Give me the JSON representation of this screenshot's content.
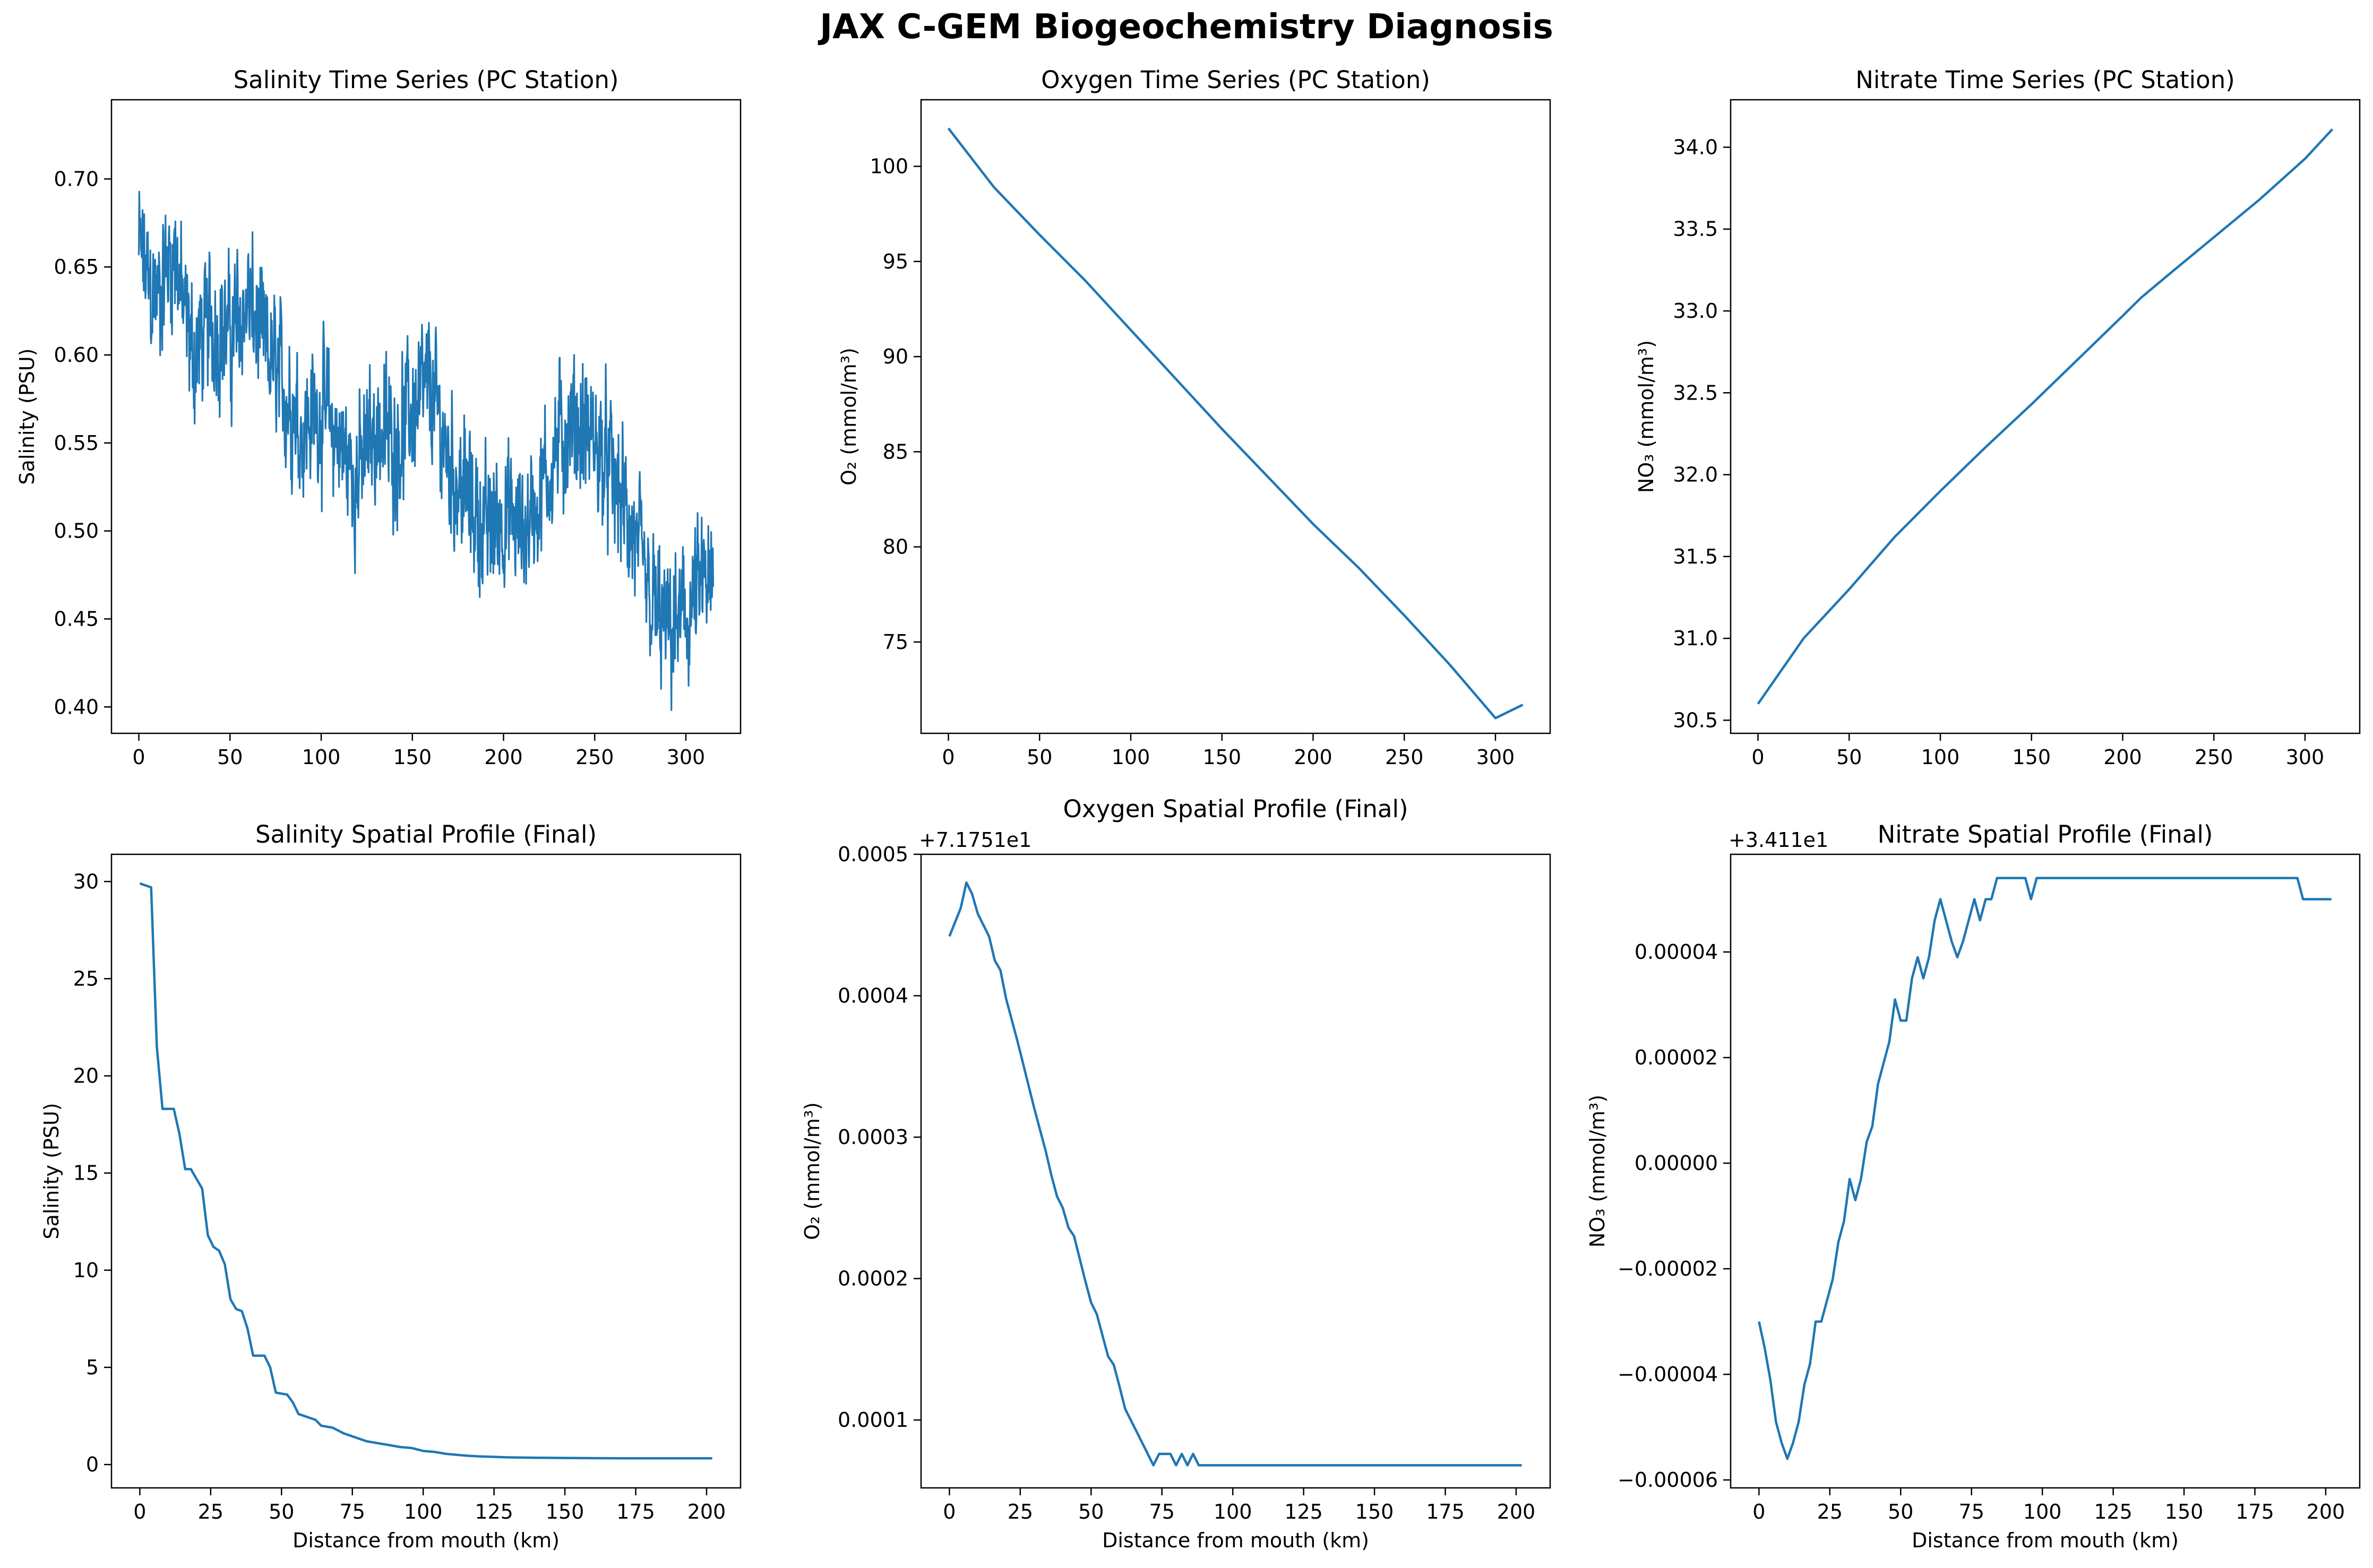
{
  "figure": {
    "suptitle": "JAX C-GEM Biogeochemistry Diagnosis"
  },
  "colors": {
    "series": "#1f77b4",
    "axes": "#000000",
    "background": "#ffffff"
  },
  "chart_data": [
    {
      "type": "line",
      "title": "Salinity Time Series (PC Station)",
      "xlabel": "",
      "ylabel": "Salinity (PSU)",
      "xlim": [
        -15,
        330
      ],
      "ylim": [
        0.385,
        0.745
      ],
      "xticks": [
        0,
        50,
        100,
        150,
        200,
        250,
        300
      ],
      "yticks": [
        0.4,
        0.45,
        0.5,
        0.55,
        0.6,
        0.65,
        0.7
      ],
      "ytick_labels": [
        "0.40",
        "0.45",
        "0.50",
        "0.55",
        "0.60",
        "0.65",
        "0.70"
      ],
      "offset_text": "",
      "noisy": true,
      "noise_amp": 0.045,
      "series": [
        {
          "x": [
            0,
            5,
            10,
            15,
            20,
            25,
            30,
            40,
            50,
            60,
            70,
            80,
            90,
            100,
            110,
            120,
            130,
            140,
            150,
            160,
            170,
            180,
            190,
            200,
            210,
            220,
            230,
            240,
            250,
            260,
            270,
            280,
            290,
            300,
            310,
            315
          ],
          "y": [
            0.66,
            0.64,
            0.63,
            0.65,
            0.66,
            0.62,
            0.6,
            0.62,
            0.61,
            0.63,
            0.6,
            0.58,
            0.56,
            0.57,
            0.55,
            0.53,
            0.56,
            0.55,
            0.57,
            0.58,
            0.54,
            0.52,
            0.5,
            0.51,
            0.5,
            0.52,
            0.55,
            0.56,
            0.55,
            0.53,
            0.5,
            0.46,
            0.44,
            0.45,
            0.47,
            0.46
          ]
        }
      ]
    },
    {
      "type": "line",
      "title": "Oxygen Time Series (PC Station)",
      "xlabel": "",
      "ylabel": "O₂ (mmol/m³)",
      "xlim": [
        -15,
        330
      ],
      "ylim": [
        70.2,
        103.5
      ],
      "xticks": [
        0,
        50,
        100,
        150,
        200,
        250,
        300
      ],
      "yticks": [
        75,
        80,
        85,
        90,
        95,
        100
      ],
      "ytick_labels": [
        "75",
        "80",
        "85",
        "90",
        "95",
        "100"
      ],
      "offset_text": "",
      "noisy": false,
      "series": [
        {
          "x": [
            0,
            25,
            50,
            75,
            100,
            125,
            150,
            175,
            200,
            225,
            250,
            275,
            300,
            315
          ],
          "y": [
            102,
            98.9,
            96.4,
            94.0,
            91.4,
            88.8,
            86.2,
            83.7,
            81.2,
            78.9,
            76.4,
            73.8,
            71.0,
            71.7
          ]
        }
      ]
    },
    {
      "type": "line",
      "title": "Nitrate Time Series (PC Station)",
      "xlabel": "",
      "ylabel": "NO₃ (mmol/m³)",
      "xlim": [
        -15,
        330
      ],
      "ylim": [
        30.42,
        34.29
      ],
      "xticks": [
        0,
        50,
        100,
        150,
        200,
        250,
        300
      ],
      "yticks": [
        30.5,
        31.0,
        31.5,
        32.0,
        32.5,
        33.0,
        33.5,
        34.0
      ],
      "ytick_labels": [
        "30.5",
        "31.0",
        "31.5",
        "32.0",
        "32.5",
        "33.0",
        "33.5",
        "34.0"
      ],
      "offset_text": "",
      "noisy": false,
      "series": [
        {
          "x": [
            0,
            25,
            50,
            75,
            100,
            125,
            150,
            175,
            200,
            210,
            225,
            250,
            275,
            300,
            315
          ],
          "y": [
            30.6,
            31.0,
            31.3,
            31.62,
            31.9,
            32.17,
            32.43,
            32.7,
            32.97,
            33.08,
            33.22,
            33.45,
            33.68,
            33.93,
            34.11
          ]
        }
      ]
    },
    {
      "type": "line",
      "title": "Salinity Spatial Profile (Final)",
      "xlabel": "Distance from mouth (km)",
      "ylabel": "Salinity (PSU)",
      "xlim": [
        -10,
        212
      ],
      "ylim": [
        -1.2,
        31.4
      ],
      "xticks": [
        0,
        25,
        50,
        75,
        100,
        125,
        150,
        175,
        200
      ],
      "yticks": [
        0,
        5,
        10,
        15,
        20,
        25,
        30
      ],
      "ytick_labels": [
        "0",
        "5",
        "10",
        "15",
        "20",
        "25",
        "30"
      ],
      "offset_text": "",
      "noisy": false,
      "series": [
        {
          "x": [
            0,
            4,
            6,
            8,
            12,
            14,
            16,
            18,
            22,
            24,
            26,
            28,
            30,
            32,
            34,
            36,
            38,
            40,
            44,
            46,
            48,
            52,
            54,
            56,
            60,
            62,
            64,
            68,
            72,
            76,
            80,
            84,
            88,
            92,
            96,
            100,
            104,
            108,
            112,
            116,
            120,
            124,
            130,
            140,
            150,
            160,
            170,
            180,
            190,
            202
          ],
          "y": [
            29.9,
            29.7,
            21.5,
            18.3,
            18.3,
            17.0,
            15.2,
            15.2,
            14.2,
            11.8,
            11.2,
            11.0,
            10.3,
            8.5,
            8.0,
            7.9,
            7.0,
            5.6,
            5.6,
            5.0,
            3.7,
            3.6,
            3.2,
            2.6,
            2.4,
            2.3,
            2.0,
            1.9,
            1.6,
            1.4,
            1.2,
            1.1,
            1.0,
            0.9,
            0.85,
            0.7,
            0.65,
            0.55,
            0.5,
            0.45,
            0.42,
            0.4,
            0.37,
            0.35,
            0.34,
            0.33,
            0.32,
            0.32,
            0.32,
            0.32
          ]
        }
      ]
    },
    {
      "type": "line",
      "title": "Oxygen Spatial Profile (Final)",
      "xlabel": "Distance from mouth (km)",
      "ylabel": "O₂ (mmol/m³)",
      "xlim": [
        -10,
        212
      ],
      "ylim": [
        5.2e-05,
        0.0005
      ],
      "xticks": [
        0,
        25,
        50,
        75,
        100,
        125,
        150,
        175,
        200
      ],
      "yticks": [
        0.0001,
        0.0002,
        0.0003,
        0.0004,
        0.0005
      ],
      "ytick_labels": [
        "0.0001",
        "0.0002",
        "0.0003",
        "0.0004",
        "0.0005"
      ],
      "offset_text": "+7.1751e1",
      "noisy": false,
      "series": [
        {
          "x": [
            0,
            2,
            4,
            6,
            8,
            10,
            12,
            14,
            16,
            18,
            20,
            22,
            24,
            26,
            28,
            30,
            32,
            34,
            36,
            38,
            40,
            42,
            44,
            46,
            48,
            50,
            52,
            54,
            56,
            58,
            60,
            62,
            64,
            66,
            68,
            70,
            72,
            74,
            76,
            78,
            80,
            82,
            84,
            86,
            88,
            90,
            100,
            150,
            202
          ],
          "y": [
            0.000442,
            0.000452,
            0.000462,
            0.00048,
            0.000472,
            0.000458,
            0.00045,
            0.000442,
            0.000425,
            0.000418,
            0.000398,
            0.000383,
            0.000368,
            0.000352,
            0.000336,
            0.00032,
            0.000305,
            0.00029,
            0.000273,
            0.000258,
            0.00025,
            0.000236,
            0.00023,
            0.000214,
            0.000198,
            0.000183,
            0.000175,
            0.00016,
            0.000145,
            0.000139,
            0.000124,
            0.000108,
            0.0001,
            9.2e-05,
            8.4e-05,
            7.6e-05,
            6.8e-05,
            7.6e-05,
            7.6e-05,
            7.6e-05,
            6.8e-05,
            7.6e-05,
            6.8e-05,
            7.6e-05,
            6.8e-05,
            6.8e-05,
            6.8e-05,
            6.8e-05,
            6.8e-05
          ]
        }
      ]
    },
    {
      "type": "line",
      "title": "Nitrate Spatial Profile (Final)",
      "xlabel": "Distance from mouth (km)",
      "ylabel": "NO₃ (mmol/m³)",
      "xlim": [
        -10,
        212
      ],
      "ylim": [
        -6.15e-05,
        5.85e-05
      ],
      "xticks": [
        0,
        25,
        50,
        75,
        100,
        125,
        150,
        175,
        200
      ],
      "yticks": [
        -6e-05,
        -4e-05,
        -2e-05,
        0.0,
        2e-05,
        4e-05
      ],
      "ytick_labels": [
        "−0.00006",
        "−0.00004",
        "−0.00002",
        "0.00000",
        "0.00002",
        "0.00004"
      ],
      "offset_text": "+3.411e1",
      "noisy": false,
      "series": [
        {
          "x": [
            0,
            2,
            4,
            6,
            8,
            10,
            12,
            14,
            16,
            18,
            20,
            22,
            24,
            26,
            28,
            30,
            32,
            34,
            36,
            38,
            40,
            42,
            44,
            46,
            48,
            50,
            52,
            54,
            56,
            58,
            60,
            62,
            64,
            66,
            68,
            70,
            72,
            74,
            76,
            78,
            80,
            82,
            84,
            86,
            88,
            90,
            92,
            94,
            96,
            98,
            100,
            120,
            150,
            190,
            192,
            202
          ],
          "y": [
            -3e-05,
            -3.5e-05,
            -4.1e-05,
            -4.9e-05,
            -5.3e-05,
            -5.6e-05,
            -5.3e-05,
            -4.9e-05,
            -4.2e-05,
            -3.8e-05,
            -3e-05,
            -3e-05,
            -2.6e-05,
            -2.2e-05,
            -1.5e-05,
            -1.1e-05,
            -3e-06,
            -7e-06,
            -3e-06,
            4e-06,
            7e-06,
            1.5e-05,
            1.9e-05,
            2.3e-05,
            3.1e-05,
            2.7e-05,
            2.7e-05,
            3.5e-05,
            3.9e-05,
            3.5e-05,
            3.9e-05,
            4.6e-05,
            5e-05,
            4.6e-05,
            4.2e-05,
            3.9e-05,
            4.2e-05,
            4.6e-05,
            5e-05,
            4.6e-05,
            5e-05,
            5e-05,
            5.4e-05,
            5.4e-05,
            5.4e-05,
            5.4e-05,
            5.4e-05,
            5.4e-05,
            5e-05,
            5.4e-05,
            5.4e-05,
            5.4e-05,
            5.4e-05,
            5.4e-05,
            5e-05,
            5e-05
          ]
        }
      ]
    }
  ]
}
